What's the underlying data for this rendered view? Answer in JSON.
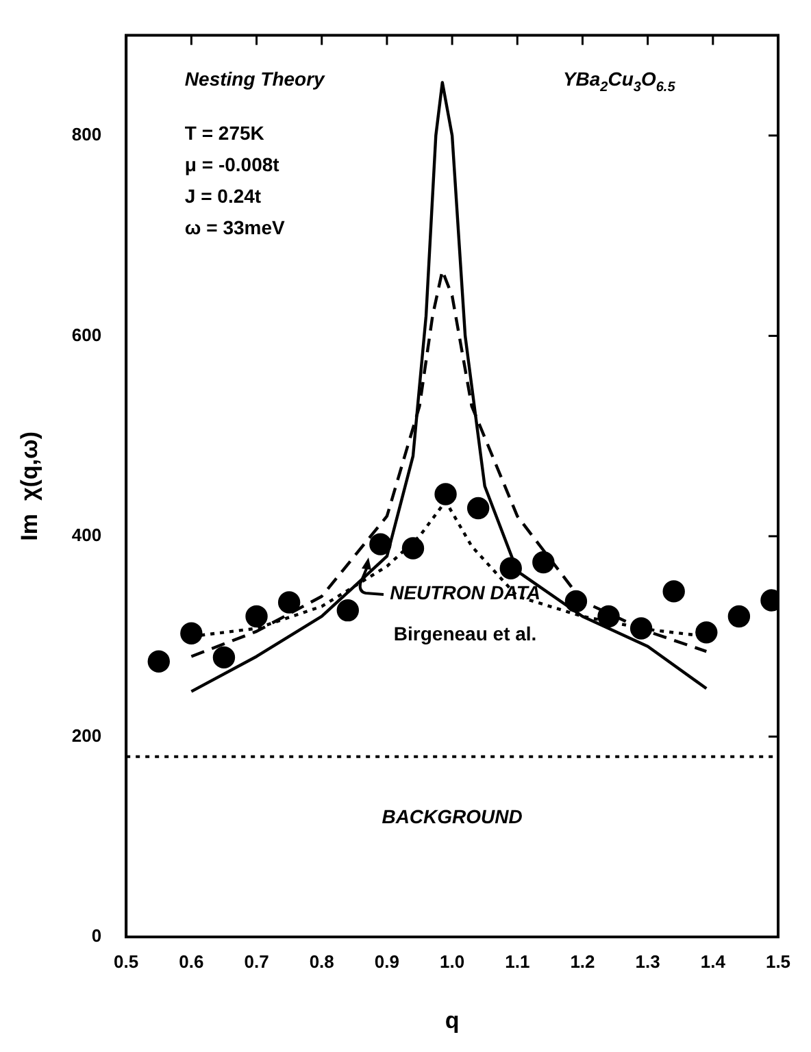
{
  "chart_data": {
    "type": "line",
    "xlabel": "q",
    "ylabel": "Im  χ(q,ω)",
    "xlim": [
      0.5,
      1.5
    ],
    "xticks": [
      {
        "value": 0.5,
        "label": "0.5"
      },
      {
        "value": 0.6,
        "label": "0.6"
      },
      {
        "value": 0.7,
        "label": "0.7"
      },
      {
        "value": 0.8,
        "label": "0.8"
      },
      {
        "value": 0.9,
        "label": "0.9"
      },
      {
        "value": 1.0,
        "label": "1.0"
      },
      {
        "value": 1.1,
        "label": "1.1"
      },
      {
        "value": 1.2,
        "label": "1.2"
      },
      {
        "value": 1.3,
        "label": "1.3"
      },
      {
        "value": 1.4,
        "label": "1.4"
      },
      {
        "value": 1.5,
        "label": "1.5"
      }
    ],
    "ylim": [
      0,
      900
    ],
    "yticks": [
      0,
      200,
      400,
      600,
      800
    ],
    "grid": false,
    "legend": false,
    "series": [
      {
        "color": "#000000",
        "line_style": "solid",
        "marker": "none",
        "x": [
          0.6,
          0.7,
          0.8,
          0.9,
          0.94,
          0.96,
          0.975,
          0.985,
          1.0,
          1.02,
          1.05,
          1.1,
          1.2,
          1.3,
          1.39
        ],
        "values": [
          245,
          280,
          320,
          380,
          480,
          620,
          800,
          853,
          800,
          600,
          450,
          365,
          320,
          290,
          248
        ]
      },
      {
        "color": "#000000",
        "line_style": "dashed",
        "marker": "none",
        "x": [
          0.6,
          0.7,
          0.8,
          0.9,
          0.95,
          0.97,
          0.985,
          1.0,
          1.03,
          1.1,
          1.2,
          1.3,
          1.39
        ],
        "values": [
          280,
          305,
          340,
          420,
          530,
          620,
          665,
          640,
          530,
          420,
          335,
          305,
          285
        ]
      },
      {
        "color": "#000000",
        "line_style": "dotted",
        "marker": "none",
        "x": [
          0.6,
          0.7,
          0.8,
          0.9,
          0.95,
          0.99,
          1.03,
          1.1,
          1.2,
          1.3,
          1.39
        ],
        "values": [
          300,
          308,
          330,
          370,
          400,
          435,
          390,
          340,
          320,
          307,
          300
        ]
      },
      {
        "type": "scatter",
        "color": "#000000",
        "marker": "circle",
        "x": [
          0.55,
          0.6,
          0.65,
          0.7,
          0.75,
          0.84,
          0.89,
          0.94,
          0.99,
          1.04,
          1.09,
          1.14,
          1.19,
          1.24,
          1.29,
          1.34,
          1.39,
          1.44,
          1.49
        ],
        "values": [
          275,
          303,
          279,
          320,
          334,
          326,
          392,
          388,
          442,
          428,
          368,
          374,
          335,
          320,
          308,
          345,
          304,
          320,
          336
        ]
      }
    ],
    "ref_lines": [
      {
        "axis": "y",
        "value": 180,
        "label": "BACKGROUND",
        "color": "#000000",
        "line_style": "dotted"
      }
    ],
    "annotations": [
      "Nesting Theory",
      "YBa$_{2}$Cu$_{3}$O$_{6.5}$",
      "T = 275K",
      "μ = -0.008t",
      "J = 0.24t",
      "ω = 33meV",
      "NEUTRON DATA",
      "Birgeneau et al."
    ]
  }
}
